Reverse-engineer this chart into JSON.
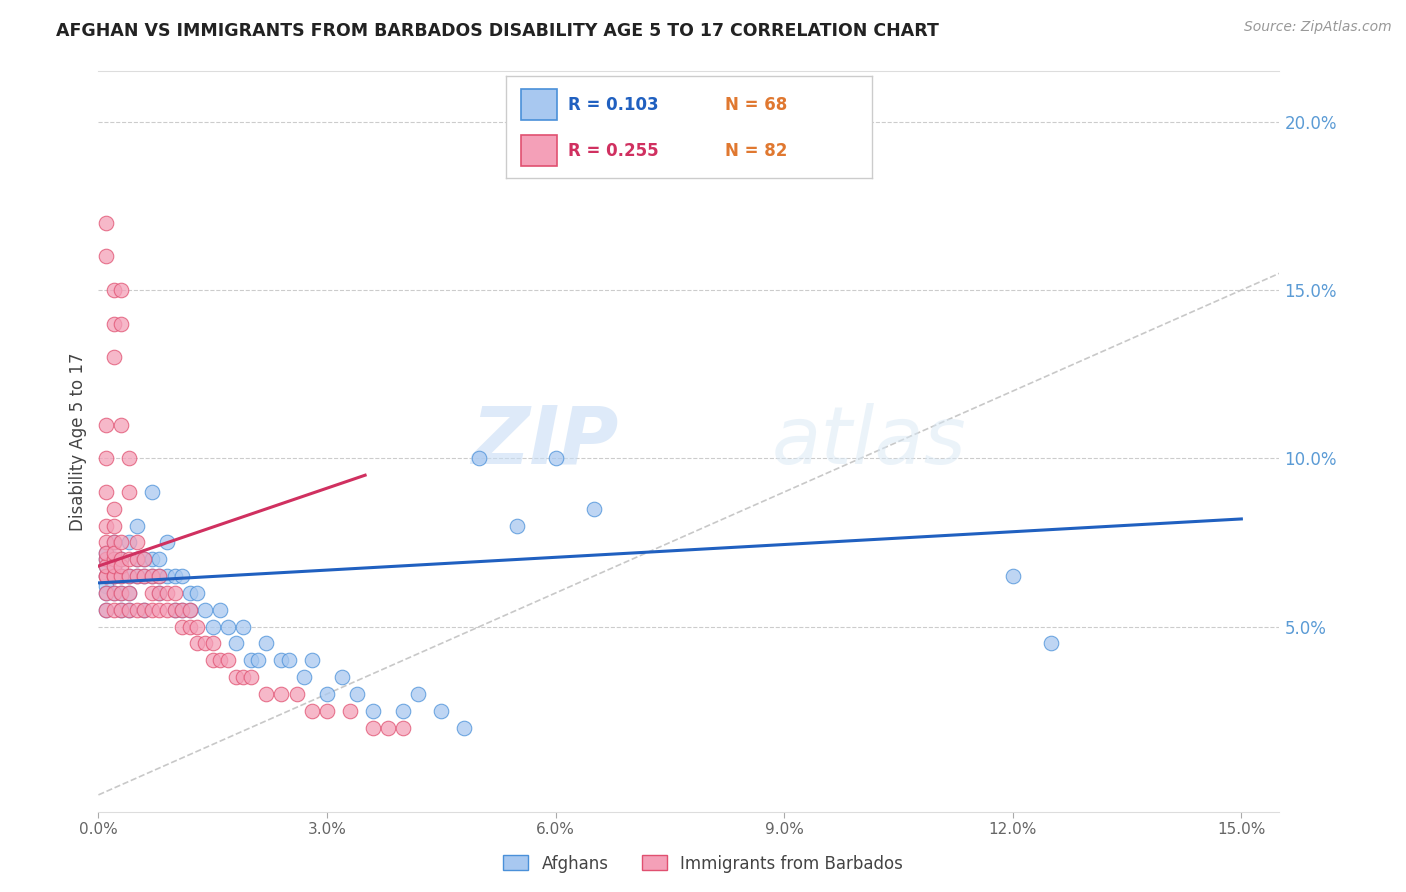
{
  "title": "AFGHAN VS IMMIGRANTS FROM BARBADOS DISABILITY AGE 5 TO 17 CORRELATION CHART",
  "source": "Source: ZipAtlas.com",
  "ylabel": "Disability Age 5 to 17",
  "xlim": [
    0.0,
    0.155
  ],
  "ylim": [
    -0.005,
    0.215
  ],
  "xticks": [
    0.0,
    0.03,
    0.06,
    0.09,
    0.12,
    0.15
  ],
  "yticks_right": [
    0.05,
    0.1,
    0.15,
    0.2
  ],
  "ytick_labels_right": [
    "5.0%",
    "10.0%",
    "15.0%",
    "20.0%"
  ],
  "xtick_labels": [
    "0.0%",
    "3.0%",
    "6.0%",
    "9.0%",
    "12.0%",
    "15.0%"
  ],
  "afghan_color": "#a8c8f0",
  "barbados_color": "#f4a0b8",
  "afghan_edge_color": "#4a90d9",
  "barbados_edge_color": "#e05070",
  "afghan_line_color": "#2060c0",
  "barbados_line_color": "#d03060",
  "diagonal_color": "#bbbbbb",
  "legend_R_color_afghan": "#2060c0",
  "legend_N_color_afghan": "#e07830",
  "legend_R_color_barbados": "#d03060",
  "legend_N_color_barbados": "#e07830",
  "legend_R_afghan": "0.103",
  "legend_N_afghan": "68",
  "legend_R_barbados": "0.255",
  "legend_N_barbados": "82",
  "legend_label_afghan": "Afghans",
  "legend_label_barbados": "Immigrants from Barbados",
  "watermark_zip": "ZIP",
  "watermark_atlas": "atlas",
  "afghan_x": [
    0.001,
    0.001,
    0.001,
    0.001,
    0.001,
    0.001,
    0.001,
    0.002,
    0.002,
    0.002,
    0.002,
    0.002,
    0.003,
    0.003,
    0.003,
    0.003,
    0.004,
    0.004,
    0.004,
    0.004,
    0.005,
    0.005,
    0.005,
    0.006,
    0.006,
    0.006,
    0.007,
    0.007,
    0.007,
    0.008,
    0.008,
    0.008,
    0.009,
    0.009,
    0.01,
    0.01,
    0.011,
    0.011,
    0.012,
    0.012,
    0.013,
    0.014,
    0.015,
    0.016,
    0.017,
    0.018,
    0.019,
    0.02,
    0.021,
    0.022,
    0.024,
    0.025,
    0.027,
    0.028,
    0.03,
    0.032,
    0.034,
    0.036,
    0.04,
    0.042,
    0.045,
    0.048,
    0.05,
    0.055,
    0.06,
    0.065,
    0.12,
    0.125
  ],
  "afghan_y": [
    0.065,
    0.07,
    0.062,
    0.055,
    0.072,
    0.068,
    0.06,
    0.07,
    0.075,
    0.065,
    0.06,
    0.068,
    0.065,
    0.06,
    0.07,
    0.055,
    0.075,
    0.065,
    0.06,
    0.055,
    0.08,
    0.07,
    0.065,
    0.065,
    0.07,
    0.055,
    0.09,
    0.07,
    0.065,
    0.065,
    0.07,
    0.06,
    0.075,
    0.065,
    0.065,
    0.055,
    0.055,
    0.065,
    0.055,
    0.06,
    0.06,
    0.055,
    0.05,
    0.055,
    0.05,
    0.045,
    0.05,
    0.04,
    0.04,
    0.045,
    0.04,
    0.04,
    0.035,
    0.04,
    0.03,
    0.035,
    0.03,
    0.025,
    0.025,
    0.03,
    0.025,
    0.02,
    0.1,
    0.08,
    0.1,
    0.085,
    0.065,
    0.045
  ],
  "barbados_x": [
    0.001,
    0.001,
    0.001,
    0.001,
    0.001,
    0.001,
    0.001,
    0.001,
    0.001,
    0.001,
    0.001,
    0.001,
    0.002,
    0.002,
    0.002,
    0.002,
    0.002,
    0.002,
    0.002,
    0.002,
    0.002,
    0.002,
    0.003,
    0.003,
    0.003,
    0.003,
    0.003,
    0.003,
    0.004,
    0.004,
    0.004,
    0.004,
    0.005,
    0.005,
    0.005,
    0.005,
    0.006,
    0.006,
    0.006,
    0.007,
    0.007,
    0.007,
    0.008,
    0.008,
    0.008,
    0.009,
    0.009,
    0.01,
    0.01,
    0.011,
    0.011,
    0.012,
    0.012,
    0.013,
    0.013,
    0.014,
    0.015,
    0.015,
    0.016,
    0.017,
    0.018,
    0.019,
    0.02,
    0.022,
    0.024,
    0.026,
    0.028,
    0.03,
    0.033,
    0.036,
    0.038,
    0.04,
    0.001,
    0.001,
    0.002,
    0.002,
    0.002,
    0.003,
    0.003,
    0.003,
    0.004,
    0.004
  ],
  "barbados_y": [
    0.065,
    0.07,
    0.075,
    0.08,
    0.09,
    0.1,
    0.11,
    0.065,
    0.055,
    0.06,
    0.068,
    0.072,
    0.065,
    0.07,
    0.075,
    0.08,
    0.085,
    0.06,
    0.055,
    0.065,
    0.068,
    0.072,
    0.065,
    0.07,
    0.075,
    0.055,
    0.06,
    0.068,
    0.065,
    0.07,
    0.055,
    0.06,
    0.065,
    0.07,
    0.075,
    0.055,
    0.065,
    0.07,
    0.055,
    0.065,
    0.055,
    0.06,
    0.055,
    0.06,
    0.065,
    0.055,
    0.06,
    0.055,
    0.06,
    0.05,
    0.055,
    0.05,
    0.055,
    0.045,
    0.05,
    0.045,
    0.04,
    0.045,
    0.04,
    0.04,
    0.035,
    0.035,
    0.035,
    0.03,
    0.03,
    0.03,
    0.025,
    0.025,
    0.025,
    0.02,
    0.02,
    0.02,
    0.17,
    0.16,
    0.15,
    0.14,
    0.13,
    0.15,
    0.14,
    0.11,
    0.1,
    0.09
  ],
  "afghan_line_x": [
    0.0,
    0.15
  ],
  "afghan_line_y": [
    0.063,
    0.082
  ],
  "barbados_line_x": [
    0.0,
    0.035
  ],
  "barbados_line_y": [
    0.068,
    0.095
  ]
}
